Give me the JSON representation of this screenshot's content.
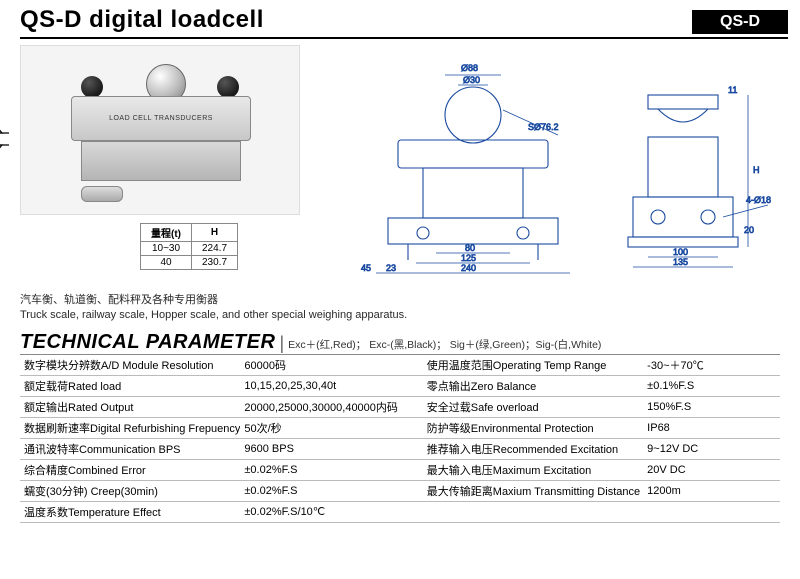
{
  "header": {
    "title": "QS-D digital loadcell",
    "badge": "QS-D"
  },
  "product_label": "LOAD CELL TRANSDUCERS",
  "dim_table": {
    "headers": [
      "量程(t)",
      "H"
    ],
    "rows": [
      [
        "10~30",
        "224.7"
      ],
      [
        "40",
        "230.7"
      ]
    ]
  },
  "description": {
    "cn": "汽车衡、轨道衡、配料秤及各种专用衡器",
    "en": "Truck scale, railway scale, Hopper scale, and other special weighing apparatus."
  },
  "tech": {
    "title": "TECHNICAL PARAMETER",
    "legend": "Exc＋(红,Red)； Exc-(黑,Black)； Sig＋(绿,Green)；Sig-(白,White)"
  },
  "params": [
    [
      "数字模块分辨数A/D Module Resolution",
      "60000码",
      "使用温度范围Operating Temp Range",
      "-30~＋70℃"
    ],
    [
      "额定载荷Rated load",
      "10,15,20,25,30,40t",
      "零点输出Zero Balance",
      "±0.1%F.S"
    ],
    [
      "额定输出Rated Output",
      "20000,25000,30000,40000内码",
      "安全过载Safe overload",
      "150%F.S"
    ],
    [
      "数据刷新速率Digital Refurbishing Frepuency",
      "50次/秒",
      "防护等级Environmental Protection",
      "IP68"
    ],
    [
      "通讯波特率Communication BPS",
      "9600 BPS",
      "推荐输入电压Recommended Excitation",
      "9~12V DC"
    ],
    [
      "综合精度Combined Error",
      "±0.02%F.S",
      "最大输入电压Maximum Excitation",
      "20V DC"
    ],
    [
      "蠕变(30分钟) Creep(30min)",
      "±0.02%F.S",
      "最大传输距离Maxium Transmitting Distance",
      "1200m"
    ],
    [
      "温度系数Temperature Effect",
      "±0.02%F.S/10℃",
      "",
      ""
    ]
  ],
  "drawing_dims": {
    "d88": "Ø88",
    "d30": "Ø30",
    "s076": "SØ76.2",
    "w80": "80",
    "w125": "125",
    "w240": "240",
    "w45": "45",
    "w23": "23",
    "h": "H",
    "s11": "11",
    "s20": "20",
    "w100": "100",
    "w135": "135",
    "holes": "4-Ø18"
  },
  "colors": {
    "line": "#1a4aa0",
    "rule": "#888888",
    "row_line": "#bbbbbb",
    "bg": "#ffffff",
    "text": "#000000"
  }
}
